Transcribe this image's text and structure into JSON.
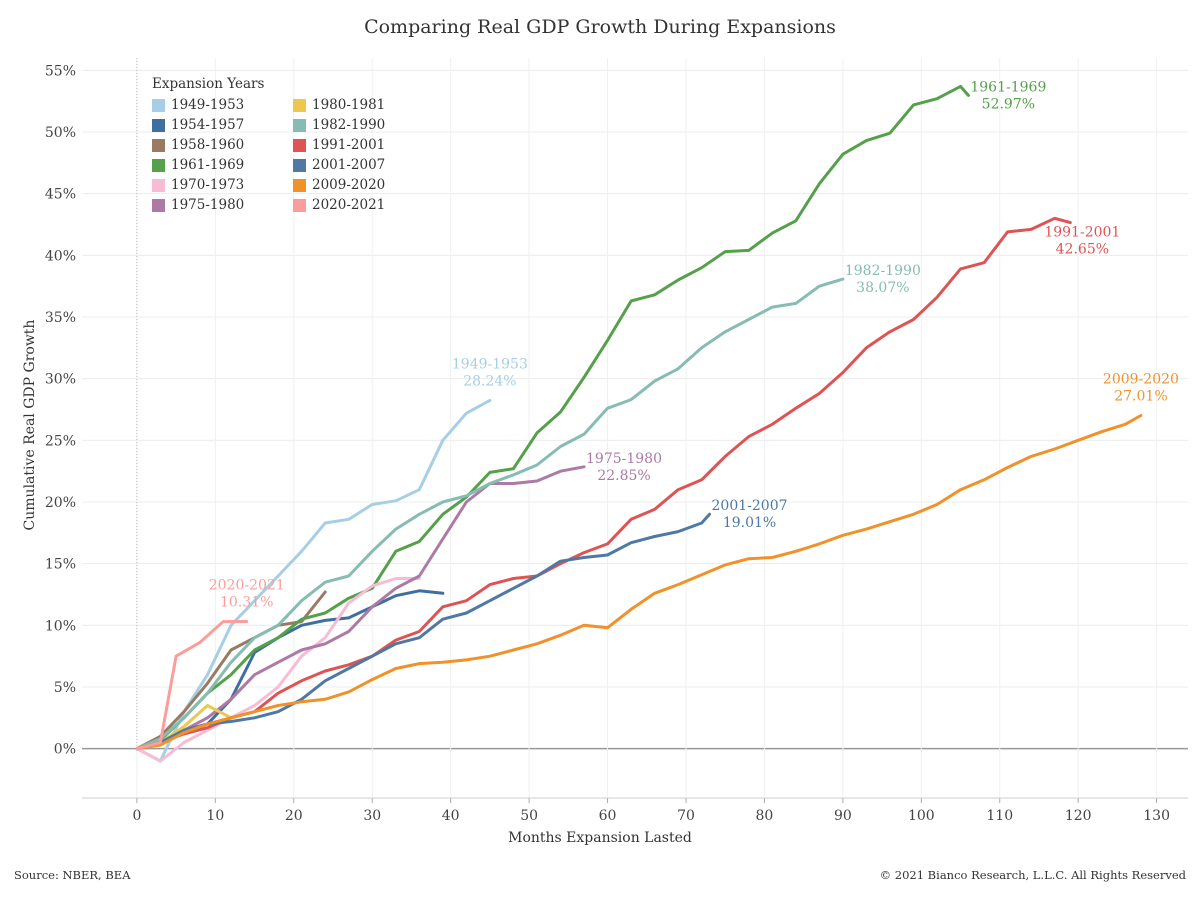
{
  "title": "Comparing Real GDP Growth During Expansions",
  "source": "Source: NBER, BEA",
  "copyright": "© 2021 Bianco Research, L.L.C. All Rights Reserved",
  "legend_title": "Expansion Years",
  "colors": {
    "1949-1953": "#a6cfe5",
    "1954-1957": "#3e6f9e",
    "1958-1960": "#9b7a64",
    "1961-1969": "#55a04a",
    "1970-1973": "#f6bcd6",
    "1975-1980": "#ad7aa6",
    "1980-1981": "#ecc84e",
    "1982-1990": "#86bcb2",
    "1991-2001": "#de5455",
    "2001-2007": "#4f79a4",
    "2009-2020": "#f0912a",
    "2020-2021": "#fb9d9a"
  },
  "chart_data": {
    "type": "line",
    "title": "Comparing Real GDP Growth During Expansions",
    "xlabel": "Months Expansion Lasted",
    "ylabel": "Cumulative Real GDP Growth",
    "xlim": [
      -7,
      134
    ],
    "ylim": [
      -4,
      56
    ],
    "x_ticks": [
      0,
      10,
      20,
      30,
      40,
      50,
      60,
      70,
      80,
      90,
      100,
      110,
      120,
      130
    ],
    "y_ticks": [
      0,
      5,
      10,
      15,
      20,
      25,
      30,
      35,
      40,
      45,
      50,
      55
    ],
    "y_tick_suffix": "%",
    "grid": true,
    "legend_position": "top-left",
    "series": [
      {
        "name": "1949-1953",
        "end_label": "28.24%",
        "label_pos": "above",
        "points": [
          [
            0,
            0
          ],
          [
            3,
            -1
          ],
          [
            6,
            3
          ],
          [
            9,
            6
          ],
          [
            12,
            10
          ],
          [
            15,
            12
          ],
          [
            18,
            14
          ],
          [
            21,
            16
          ],
          [
            24,
            18.3
          ],
          [
            27,
            18.6
          ],
          [
            30,
            19.8
          ],
          [
            33,
            20.1
          ],
          [
            36,
            21
          ],
          [
            39,
            25
          ],
          [
            42,
            27.2
          ],
          [
            45,
            28.24
          ]
        ]
      },
      {
        "name": "1954-1957",
        "end_label": "",
        "label_pos": "none",
        "points": [
          [
            0,
            0
          ],
          [
            3,
            0.5
          ],
          [
            6,
            1.3
          ],
          [
            9,
            2
          ],
          [
            12,
            4
          ],
          [
            15,
            7.8
          ],
          [
            18,
            9
          ],
          [
            21,
            10
          ],
          [
            24,
            10.4
          ],
          [
            27,
            10.6
          ],
          [
            30,
            11.5
          ],
          [
            33,
            12.4
          ],
          [
            36,
            12.8
          ],
          [
            39,
            12.6
          ]
        ]
      },
      {
        "name": "1958-1960",
        "end_label": "",
        "label_pos": "none",
        "points": [
          [
            0,
            0
          ],
          [
            3,
            1
          ],
          [
            6,
            3
          ],
          [
            9,
            5.3
          ],
          [
            12,
            8
          ],
          [
            15,
            9
          ],
          [
            18,
            10
          ],
          [
            21,
            10.3
          ],
          [
            24,
            12.7
          ]
        ]
      },
      {
        "name": "1961-1969",
        "end_label": "52.97%",
        "label_pos": "right",
        "points": [
          [
            0,
            0
          ],
          [
            3,
            0.7
          ],
          [
            6,
            2.5
          ],
          [
            9,
            4.5
          ],
          [
            12,
            6
          ],
          [
            15,
            8
          ],
          [
            18,
            9
          ],
          [
            21,
            10.5
          ],
          [
            24,
            11
          ],
          [
            27,
            12.2
          ],
          [
            30,
            13
          ],
          [
            33,
            16
          ],
          [
            36,
            16.8
          ],
          [
            39,
            19
          ],
          [
            42,
            20.4
          ],
          [
            45,
            22.4
          ],
          [
            48,
            22.7
          ],
          [
            51,
            25.6
          ],
          [
            54,
            27.3
          ],
          [
            57,
            30.1
          ],
          [
            60,
            33.1
          ],
          [
            63,
            36.3
          ],
          [
            66,
            36.8
          ],
          [
            69,
            38
          ],
          [
            72,
            39
          ],
          [
            75,
            40.3
          ],
          [
            78,
            40.4
          ],
          [
            81,
            41.8
          ],
          [
            84,
            42.8
          ],
          [
            87,
            45.8
          ],
          [
            90,
            48.2
          ],
          [
            93,
            49.3
          ],
          [
            96,
            49.9
          ],
          [
            99,
            52.2
          ],
          [
            102,
            52.7
          ],
          [
            105,
            53.7
          ],
          [
            106,
            52.97
          ]
        ]
      },
      {
        "name": "1970-1973",
        "end_label": "",
        "label_pos": "none",
        "points": [
          [
            0,
            0
          ],
          [
            3,
            -1
          ],
          [
            6,
            0.5
          ],
          [
            9,
            1.5
          ],
          [
            12,
            2.5
          ],
          [
            15,
            3.5
          ],
          [
            18,
            5
          ],
          [
            21,
            7.5
          ],
          [
            24,
            9
          ],
          [
            27,
            11.8
          ],
          [
            30,
            13.2
          ],
          [
            33,
            13.8
          ],
          [
            36,
            13.8
          ]
        ]
      },
      {
        "name": "1975-1980",
        "end_label": "22.85%",
        "label_pos": "right",
        "points": [
          [
            0,
            0
          ],
          [
            3,
            0.5
          ],
          [
            6,
            1.5
          ],
          [
            9,
            2.5
          ],
          [
            12,
            4
          ],
          [
            15,
            6
          ],
          [
            18,
            7
          ],
          [
            21,
            8
          ],
          [
            24,
            8.5
          ],
          [
            27,
            9.5
          ],
          [
            30,
            11.5
          ],
          [
            33,
            13
          ],
          [
            36,
            14
          ],
          [
            39,
            17
          ],
          [
            42,
            20
          ],
          [
            45,
            21.5
          ],
          [
            48,
            21.5
          ],
          [
            51,
            21.7
          ],
          [
            54,
            22.5
          ],
          [
            57,
            22.85
          ]
        ]
      },
      {
        "name": "1980-1981",
        "end_label": "",
        "label_pos": "none",
        "points": [
          [
            0,
            0
          ],
          [
            3,
            0.5
          ],
          [
            6,
            1.8
          ],
          [
            9,
            3.5
          ],
          [
            12,
            2.5
          ]
        ]
      },
      {
        "name": "1982-1990",
        "end_label": "38.07%",
        "label_pos": "right",
        "points": [
          [
            0,
            0
          ],
          [
            3,
            0.8
          ],
          [
            6,
            2.5
          ],
          [
            9,
            4.5
          ],
          [
            12,
            7
          ],
          [
            15,
            9
          ],
          [
            18,
            10
          ],
          [
            21,
            12
          ],
          [
            24,
            13.5
          ],
          [
            27,
            14
          ],
          [
            30,
            16
          ],
          [
            33,
            17.8
          ],
          [
            36,
            19
          ],
          [
            39,
            20
          ],
          [
            42,
            20.5
          ],
          [
            45,
            21.5
          ],
          [
            48,
            22.2
          ],
          [
            51,
            23
          ],
          [
            54,
            24.5
          ],
          [
            57,
            25.5
          ],
          [
            60,
            27.6
          ],
          [
            63,
            28.3
          ],
          [
            66,
            29.8
          ],
          [
            69,
            30.8
          ],
          [
            72,
            32.5
          ],
          [
            75,
            33.8
          ],
          [
            78,
            34.8
          ],
          [
            81,
            35.8
          ],
          [
            84,
            36.1
          ],
          [
            87,
            37.5
          ],
          [
            90,
            38.07
          ]
        ]
      },
      {
        "name": "1991-2001",
        "end_label": "42.65%",
        "label_pos": "below",
        "points": [
          [
            0,
            0
          ],
          [
            3,
            0.5
          ],
          [
            6,
            1.2
          ],
          [
            9,
            1.7
          ],
          [
            12,
            2.5
          ],
          [
            15,
            3
          ],
          [
            18,
            4.5
          ],
          [
            21,
            5.5
          ],
          [
            24,
            6.3
          ],
          [
            27,
            6.8
          ],
          [
            30,
            7.5
          ],
          [
            33,
            8.8
          ],
          [
            36,
            9.5
          ],
          [
            39,
            11.5
          ],
          [
            42,
            12
          ],
          [
            45,
            13.3
          ],
          [
            48,
            13.8
          ],
          [
            51,
            14
          ],
          [
            54,
            15
          ],
          [
            57,
            15.9
          ],
          [
            60,
            16.6
          ],
          [
            63,
            18.6
          ],
          [
            66,
            19.4
          ],
          [
            69,
            21
          ],
          [
            72,
            21.8
          ],
          [
            75,
            23.7
          ],
          [
            78,
            25.3
          ],
          [
            81,
            26.3
          ],
          [
            84,
            27.6
          ],
          [
            87,
            28.8
          ],
          [
            90,
            30.5
          ],
          [
            93,
            32.5
          ],
          [
            96,
            33.8
          ],
          [
            99,
            34.8
          ],
          [
            102,
            36.6
          ],
          [
            105,
            38.9
          ],
          [
            108,
            39.4
          ],
          [
            111,
            41.9
          ],
          [
            114,
            42.1
          ],
          [
            117,
            43
          ],
          [
            119,
            42.65
          ]
        ]
      },
      {
        "name": "2001-2007",
        "end_label": "19.01%",
        "label_pos": "right",
        "points": [
          [
            0,
            0
          ],
          [
            3,
            0.5
          ],
          [
            6,
            1.5
          ],
          [
            9,
            2
          ],
          [
            12,
            2.2
          ],
          [
            15,
            2.5
          ],
          [
            18,
            3
          ],
          [
            21,
            4
          ],
          [
            24,
            5.5
          ],
          [
            27,
            6.5
          ],
          [
            30,
            7.5
          ],
          [
            33,
            8.5
          ],
          [
            36,
            9
          ],
          [
            39,
            10.5
          ],
          [
            42,
            11
          ],
          [
            45,
            12
          ],
          [
            48,
            13
          ],
          [
            51,
            14
          ],
          [
            54,
            15.2
          ],
          [
            57,
            15.5
          ],
          [
            60,
            15.7
          ],
          [
            63,
            16.7
          ],
          [
            66,
            17.2
          ],
          [
            69,
            17.6
          ],
          [
            72,
            18.3
          ],
          [
            73,
            19.01
          ]
        ]
      },
      {
        "name": "2009-2020",
        "end_label": "27.01%",
        "label_pos": "above",
        "points": [
          [
            0,
            0
          ],
          [
            3,
            0.3
          ],
          [
            6,
            1.3
          ],
          [
            9,
            2
          ],
          [
            12,
            2.5
          ],
          [
            15,
            3
          ],
          [
            18,
            3.5
          ],
          [
            21,
            3.8
          ],
          [
            24,
            4
          ],
          [
            27,
            4.6
          ],
          [
            30,
            5.6
          ],
          [
            33,
            6.5
          ],
          [
            36,
            6.9
          ],
          [
            39,
            7
          ],
          [
            42,
            7.2
          ],
          [
            45,
            7.5
          ],
          [
            48,
            8
          ],
          [
            51,
            8.5
          ],
          [
            54,
            9.2
          ],
          [
            57,
            10
          ],
          [
            60,
            9.8
          ],
          [
            63,
            11.3
          ],
          [
            66,
            12.6
          ],
          [
            69,
            13.3
          ],
          [
            72,
            14.1
          ],
          [
            75,
            14.9
          ],
          [
            78,
            15.4
          ],
          [
            81,
            15.5
          ],
          [
            84,
            16
          ],
          [
            87,
            16.6
          ],
          [
            90,
            17.3
          ],
          [
            93,
            17.8
          ],
          [
            96,
            18.4
          ],
          [
            99,
            19
          ],
          [
            102,
            19.8
          ],
          [
            105,
            21
          ],
          [
            108,
            21.8
          ],
          [
            111,
            22.8
          ],
          [
            114,
            23.7
          ],
          [
            117,
            24.3
          ],
          [
            120,
            25
          ],
          [
            123,
            25.7
          ],
          [
            126,
            26.3
          ],
          [
            128,
            27.01
          ]
        ]
      },
      {
        "name": "2020-2021",
        "end_label": "10.31%",
        "label_pos": "above",
        "points": [
          [
            0,
            0
          ],
          [
            3,
            0.5
          ],
          [
            5,
            7.5
          ],
          [
            8,
            8.6
          ],
          [
            11,
            10.3
          ],
          [
            14,
            10.31
          ]
        ]
      }
    ]
  }
}
